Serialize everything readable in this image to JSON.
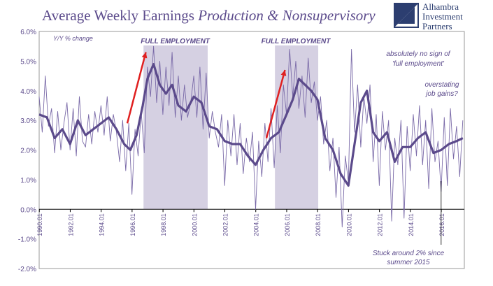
{
  "title_main": "Average Weekly Earnings ",
  "title_italic": "Production & Nonsupervisory",
  "logo": {
    "line1": "Alhambra",
    "line2": "Investment",
    "line3": "Partners"
  },
  "colors": {
    "accent": "#5b4a8b",
    "thin": "#7a6aa8",
    "band": "#d5d0e2",
    "arrow": "#e02020",
    "logo": "#2c3e70"
  },
  "chart_data": {
    "type": "line",
    "ylabel": "Y/Y % change",
    "ylim": [
      -2,
      6
    ],
    "yticks": [
      "6.0%",
      "5.0%",
      "4.0%",
      "3.0%",
      "2.0%",
      "1.0%",
      "0.0%",
      "-1.0%",
      "-2.0%"
    ],
    "xlim": [
      1990.0,
      2017.5
    ],
    "xticks": [
      "1990.01",
      "1992.01",
      "1994.01",
      "1996.01",
      "1998.01",
      "2000.01",
      "2002.01",
      "2004.01",
      "2006.01",
      "2008.01",
      "2010.01",
      "2012.01",
      "2014.01",
      "2016.01"
    ],
    "shaded_periods": [
      [
        1996.75,
        2000.9
      ],
      [
        2005.25,
        2008.05
      ]
    ],
    "annotations": {
      "full_employment_1": "FULL EMPLOYMENT",
      "full_employment_2": "FULL EMPLOYMENT",
      "no_sign": "absolutely no sign of\n'full employment'",
      "overstating": "overstating\njob gains?",
      "stuck": "Stuck around 2% since\nsummer 2015"
    },
    "series": [
      {
        "style": "thick",
        "x": [
          1990.0,
          1990.5,
          1991.0,
          1991.5,
          1992.0,
          1992.5,
          1993.0,
          1993.5,
          1994.0,
          1994.5,
          1995.0,
          1995.5,
          1995.9,
          1996.3,
          1996.7,
          1997.0,
          1997.4,
          1997.8,
          1998.2,
          1998.6,
          1999.0,
          1999.5,
          2000.0,
          2000.5,
          2001.0,
          2001.5,
          2002.0,
          2002.5,
          2003.0,
          2003.5,
          2004.0,
          2004.5,
          2005.0,
          2005.5,
          2006.0,
          2006.4,
          2006.8,
          2007.2,
          2007.6,
          2008.0,
          2008.5,
          2009.0,
          2009.5,
          2010.0,
          2010.4,
          2010.8,
          2011.2,
          2011.6,
          2012.0,
          2012.5,
          2013.0,
          2013.5,
          2014.0,
          2014.5,
          2015.0,
          2015.5,
          2016.0,
          2016.5,
          2017.0,
          2017.4
        ],
        "y": [
          3.2,
          3.1,
          2.4,
          2.7,
          2.2,
          3.0,
          2.5,
          2.7,
          2.9,
          3.1,
          2.7,
          2.2,
          2.0,
          2.5,
          3.5,
          4.4,
          4.9,
          4.2,
          3.9,
          4.2,
          3.5,
          3.3,
          3.8,
          3.6,
          2.8,
          2.7,
          2.3,
          2.2,
          2.2,
          1.8,
          1.5,
          2.0,
          2.4,
          2.6,
          3.2,
          3.7,
          4.4,
          4.2,
          4.0,
          3.7,
          2.4,
          2.0,
          1.2,
          0.8,
          2.2,
          3.6,
          4.0,
          2.6,
          2.3,
          2.6,
          1.6,
          2.1,
          2.1,
          2.4,
          2.6,
          1.9,
          2.0,
          2.2,
          2.3,
          2.4
        ]
      },
      {
        "style": "thin",
        "x": [
          1990.0,
          1990.2,
          1990.4,
          1990.6,
          1990.8,
          1991.0,
          1991.2,
          1991.4,
          1991.6,
          1991.8,
          1992.0,
          1992.2,
          1992.4,
          1992.6,
          1992.8,
          1993.0,
          1993.2,
          1993.4,
          1993.6,
          1993.8,
          1994.0,
          1994.2,
          1994.4,
          1994.6,
          1994.8,
          1995.0,
          1995.2,
          1995.4,
          1995.6,
          1995.8,
          1996.0,
          1996.2,
          1996.4,
          1996.6,
          1996.8,
          1997.0,
          1997.2,
          1997.4,
          1997.6,
          1997.8,
          1998.0,
          1998.2,
          1998.4,
          1998.6,
          1998.8,
          1999.0,
          1999.2,
          1999.4,
          1999.6,
          1999.8,
          2000.0,
          2000.2,
          2000.4,
          2000.6,
          2000.8,
          2001.0,
          2001.2,
          2001.4,
          2001.6,
          2001.8,
          2002.0,
          2002.2,
          2002.4,
          2002.6,
          2002.8,
          2003.0,
          2003.2,
          2003.4,
          2003.6,
          2003.8,
          2004.0,
          2004.2,
          2004.4,
          2004.6,
          2004.8,
          2005.0,
          2005.2,
          2005.4,
          2005.6,
          2005.8,
          2006.0,
          2006.2,
          2006.4,
          2006.6,
          2006.8,
          2007.0,
          2007.2,
          2007.4,
          2007.6,
          2007.8,
          2008.0,
          2008.2,
          2008.4,
          2008.6,
          2008.8,
          2009.0,
          2009.2,
          2009.4,
          2009.6,
          2009.8,
          2010.0,
          2010.2,
          2010.4,
          2010.6,
          2010.8,
          2011.0,
          2011.2,
          2011.4,
          2011.6,
          2011.8,
          2012.0,
          2012.2,
          2012.4,
          2012.6,
          2012.8,
          2013.0,
          2013.2,
          2013.4,
          2013.6,
          2013.8,
          2014.0,
          2014.2,
          2014.4,
          2014.6,
          2014.8,
          2015.0,
          2015.2,
          2015.4,
          2015.6,
          2015.8,
          2016.0,
          2016.2,
          2016.4,
          2016.6,
          2016.8,
          2017.0,
          2017.2,
          2017.4
        ],
        "y": [
          3.8,
          2.6,
          4.5,
          2.8,
          3.4,
          1.9,
          3.3,
          2.0,
          2.9,
          3.6,
          2.0,
          3.4,
          1.8,
          3.8,
          2.3,
          2.1,
          3.2,
          2.2,
          3.3,
          2.6,
          3.5,
          2.5,
          3.8,
          2.3,
          3.2,
          2.6,
          1.6,
          3.0,
          1.3,
          2.9,
          0.5,
          2.7,
          1.8,
          3.3,
          1.9,
          4.8,
          3.8,
          5.5,
          3.6,
          5.0,
          3.2,
          4.8,
          3.5,
          5.3,
          3.1,
          4.5,
          3.0,
          4.2,
          3.1,
          3.6,
          4.5,
          3.1,
          4.8,
          2.7,
          4.6,
          2.4,
          3.3,
          2.6,
          2.1,
          3.2,
          0.8,
          3.0,
          1.8,
          3.2,
          1.5,
          2.9,
          1.2,
          2.4,
          1.6,
          2.6,
          0.0,
          2.3,
          1.1,
          2.9,
          1.6,
          3.4,
          1.4,
          3.5,
          1.9,
          4.2,
          3.2,
          5.4,
          3.8,
          5.0,
          3.4,
          4.5,
          3.1,
          5.1,
          3.6,
          4.3,
          3.0,
          3.8,
          2.2,
          3.0,
          1.3,
          2.4,
          0.4,
          2.1,
          -0.6,
          1.8,
          0.9,
          5.4,
          2.6,
          4.2,
          2.1,
          3.8,
          2.9,
          4.2,
          1.6,
          3.2,
          0.8,
          3.3,
          2.0,
          3.0,
          -0.4,
          2.4,
          1.5,
          3.0,
          -0.3,
          2.8,
          1.3,
          3.2,
          1.8,
          3.5,
          1.5,
          3.0,
          0.7,
          3.4,
          1.6,
          2.3,
          0.6,
          3.1,
          0.8,
          3.4,
          1.7,
          2.8,
          1.1,
          3.0
        ]
      }
    ]
  }
}
